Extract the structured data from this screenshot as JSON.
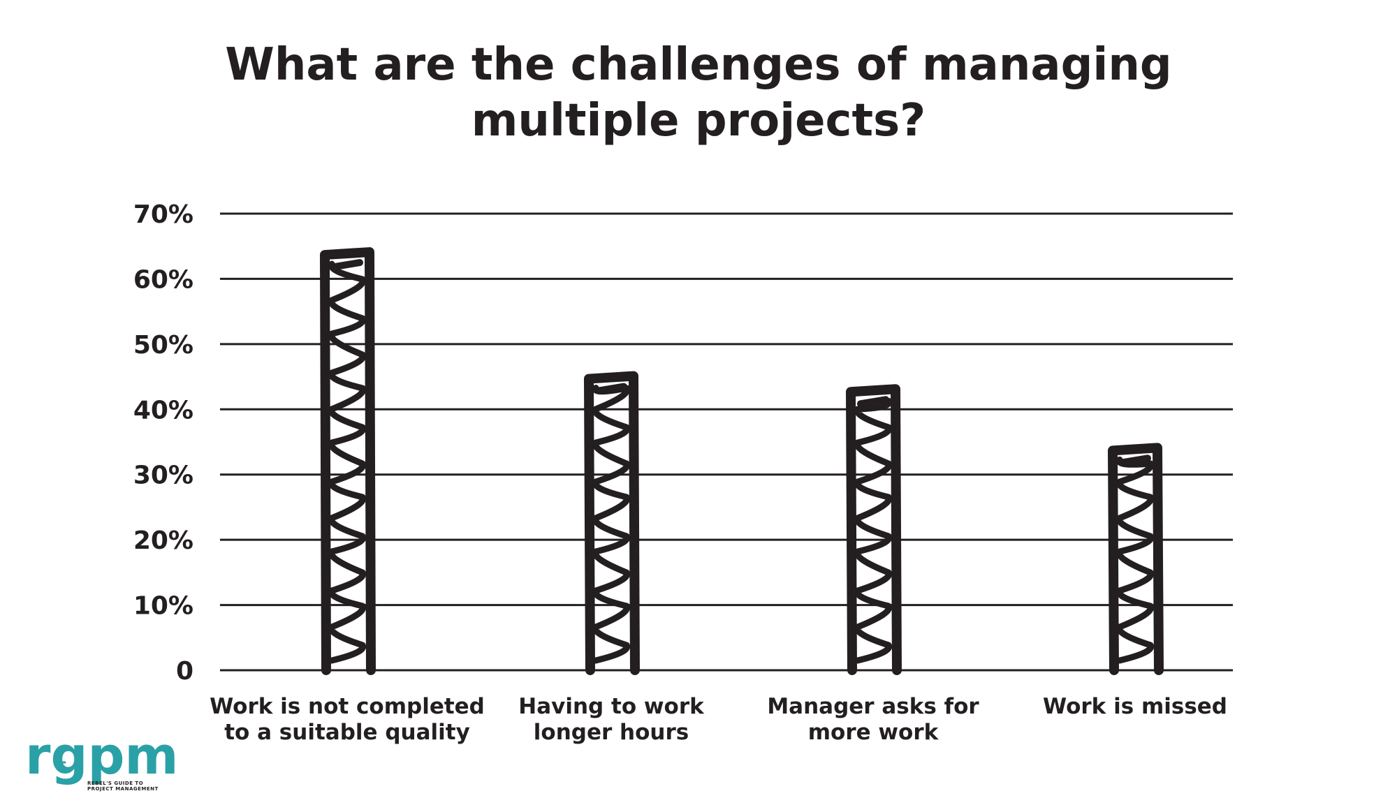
{
  "chart_data": {
    "type": "bar",
    "title_lines": [
      "What are the challenges of managing",
      "multiple projects?"
    ],
    "categories": [
      [
        "Work is not completed",
        "to a suitable quality"
      ],
      [
        "Having to work",
        "longer hours"
      ],
      [
        "Manager asks for",
        "more work"
      ],
      [
        "Work is missed"
      ]
    ],
    "values": [
      64,
      45,
      43,
      34
    ],
    "y_ticks": [
      "0",
      "10%",
      "20%",
      "30%",
      "40%",
      "50%",
      "60%",
      "70%"
    ],
    "ylim": [
      0,
      70
    ],
    "xlabel": "",
    "ylabel": "",
    "grid": true,
    "bar_style": "hand-drawn scribble",
    "colors": {
      "ink": "#231f20",
      "background": "#ffffff"
    }
  },
  "logo": {
    "text": "rgpm",
    "subtitle_lines": [
      "REBEL'S GUIDE TO",
      "PROJECT MANAGEMENT"
    ],
    "color": "#2aa1a6"
  }
}
